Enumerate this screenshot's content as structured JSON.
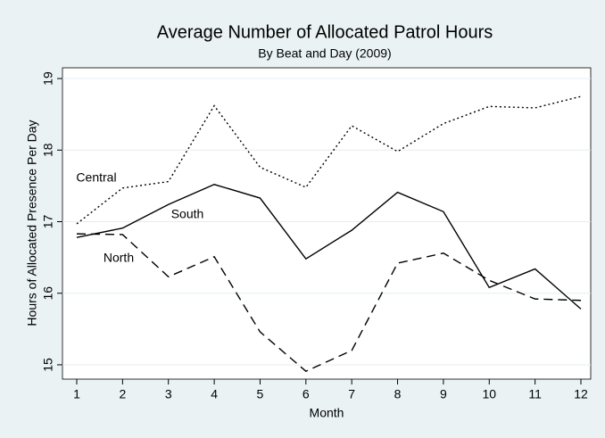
{
  "chart_data": {
    "type": "line",
    "title": "Average Number of Allocated Patrol Hours",
    "subtitle": "By Beat and Day (2009)",
    "x_label": "Month",
    "y_label": "Hours of Allocated Presence Per Day",
    "x": [
      1,
      2,
      3,
      4,
      5,
      6,
      7,
      8,
      9,
      10,
      11,
      12
    ],
    "xlim": [
      1,
      12
    ],
    "xticks": [
      1,
      2,
      3,
      4,
      5,
      6,
      7,
      8,
      9,
      10,
      11,
      12
    ],
    "ylim": [
      14.8,
      19.15
    ],
    "yticks": [
      15,
      16,
      17,
      18,
      19
    ],
    "grid": true,
    "series": [
      {
        "name": "Central",
        "color": "#000000",
        "style": "dotted",
        "values": [
          16.97,
          17.47,
          17.56,
          18.62,
          17.76,
          17.48,
          18.34,
          17.98,
          18.37,
          18.61,
          18.59,
          18.75
        ]
      },
      {
        "name": "South",
        "color": "#000000",
        "style": "solid",
        "values": [
          16.78,
          16.91,
          17.24,
          17.52,
          17.33,
          16.48,
          16.88,
          17.41,
          17.14,
          16.08,
          16.34,
          15.78
        ]
      },
      {
        "name": "North",
        "color": "#000000",
        "style": "dashed",
        "values": [
          16.83,
          16.82,
          16.23,
          16.51,
          15.46,
          14.91,
          15.2,
          16.42,
          16.56,
          16.18,
          15.92,
          15.9
        ]
      }
    ]
  }
}
